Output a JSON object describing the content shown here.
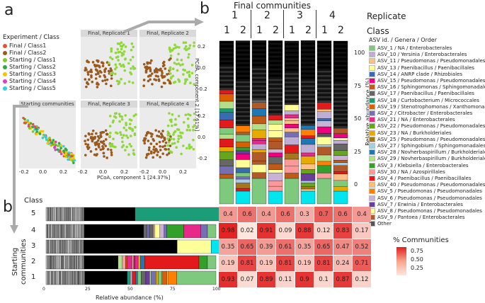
{
  "panel_labels": {
    "a": "a",
    "b_top": "b",
    "b_bottom": "b"
  },
  "legend_a": {
    "title": "Experiment / Class",
    "items": [
      {
        "label": "Final / Class1",
        "color": "#e8502f"
      },
      {
        "label": "Final / Class2",
        "color": "#9a5a1e"
      },
      {
        "label": "Starting / Class1",
        "color": "#7ecb1c"
      },
      {
        "label": "Starting / Class2",
        "color": "#2fa844"
      },
      {
        "label": "Starting / Class3",
        "color": "#f5c400"
      },
      {
        "label": "Starting / Class4",
        "color": "#e23bc9"
      },
      {
        "label": "Starting / Class5",
        "color": "#2fd1d9"
      }
    ]
  },
  "pcoa": {
    "facets": [
      "Final, Replicate 1",
      "Final, Replicate 2",
      "Starting communities",
      "Final, Replicate 3",
      "Final, Replicate 4"
    ],
    "xlabel": "PCoA, component 1 [24.37%]",
    "ylabel": "PCoA, component 2 [17.61%]",
    "xticks": [
      "-0.2",
      "0.0",
      "0.2"
    ],
    "yticks": [
      "0.2",
      "0.0",
      "-0.2"
    ]
  },
  "final": {
    "title": "Final communities",
    "replicate_label": "Replicate",
    "class_label": "Class",
    "replicates": [
      "1",
      "2",
      "3",
      "4"
    ],
    "classes": [
      "1",
      "2",
      "1",
      "2",
      "1",
      "2",
      "1",
      "2"
    ],
    "yaxis_label": "Relative abundance (%)",
    "yticks": [
      "100",
      "75",
      "50",
      "25",
      "0"
    ]
  },
  "asv_legend": {
    "title": "ASV id. / Genera / Order",
    "items": [
      {
        "label": "ASV_1 / NA / Enterobacterales",
        "color": "#7fc97f"
      },
      {
        "label": "ASV_10 / Yersinia / Enterobacterales",
        "color": "#beaed4"
      },
      {
        "label": "ASV_11 / Pseudomonas / Pseudomonadales",
        "color": "#fdc086"
      },
      {
        "label": "ASV_13 / Paenibacillus / Paenibacillales",
        "color": "#ffff99"
      },
      {
        "label": "ASV_14 / ANRP clade / Rhizobiales",
        "color": "#386cb0"
      },
      {
        "label": "ASV_15 / Pseudomonas / Pseudomonadales",
        "color": "#f0027f"
      },
      {
        "label": "ASV_16 / Sphingomonas / Sphingomonadales",
        "color": "#bf5b17"
      },
      {
        "label": "ASV_17 / Paenibacillus / Paenibacillales",
        "color": "#666666"
      },
      {
        "label": "ASV_18 / Curtobacterium / Micrococcales",
        "color": "#1b9e77"
      },
      {
        "label": "ASV_19 / Stenotrophomonas / Xanthomonadales",
        "color": "#d95f02"
      },
      {
        "label": "ASV_2 / Citrobacter / Enterobacterales",
        "color": "#7570b3"
      },
      {
        "label": "ASV_21 / NA / Enterobacterales",
        "color": "#e7298a"
      },
      {
        "label": "ASV_22 / Pseudomonas / Pseudomonadales",
        "color": "#66a61e"
      },
      {
        "label": "ASV_23 / NA / Burkholderiales",
        "color": "#e6ab02"
      },
      {
        "label": "ASV_25 / Pseudomonas / Pseudomonadales",
        "color": "#a6761d"
      },
      {
        "label": "ASV_27 / Sphingobium / Sphingomonadales",
        "color": "#a6cee3"
      },
      {
        "label": "ASV_28 / Novherbaspirillum / Burkholderiales",
        "color": "#1f78b4"
      },
      {
        "label": "ASV_29 / Novherbaspirillum / Burkholderiales",
        "color": "#b2df8a"
      },
      {
        "label": "ASV_3 / Klebsiella / Enterobacterales",
        "color": "#33a02c"
      },
      {
        "label": "ASV_30 / NA / Azospirillales",
        "color": "#fb9a99"
      },
      {
        "label": "ASV_4 / Paenibacillus / Paenibacillales",
        "color": "#e31a1c"
      },
      {
        "label": "ASV_40 / Pseudomonas / Pseudomonadales",
        "color": "#fdbf6f"
      },
      {
        "label": "ASV_5 / Pseudomonas / Pseudomonadales",
        "color": "#ff7f00"
      },
      {
        "label": "ASV_6 / Pseudomonas / Pseudomonadales",
        "color": "#cab2d6"
      },
      {
        "label": "ASV_7 / Erwinia / Enterobacterales",
        "color": "#6a3d9a"
      },
      {
        "label": "ASV_8 / Pseudomonas / Pseudomonadales",
        "color": "#ffff99"
      },
      {
        "label": "ASV_9 / Pantoea / Enterobacterales",
        "color": "#b15928"
      },
      {
        "label": "Other",
        "color": "#555555"
      }
    ]
  },
  "starting": {
    "class_label": "Class",
    "y_label_line1": "Starting",
    "y_label_line2": "communities",
    "classes": [
      "5",
      "4",
      "3",
      "2",
      "1"
    ],
    "xlabel": "Relative abundance (%)",
    "xticks": [
      "0",
      "25",
      "50",
      "75",
      "100"
    ]
  },
  "heatmap": {
    "legend_title": "% Communities",
    "legend_ticks": [
      "0.75",
      "0.50",
      "0.25"
    ],
    "rows": [
      [
        "0.4",
        "0.6",
        "0.4",
        "0.6",
        "0.3",
        "0.7",
        "0.6",
        "0.4"
      ],
      [
        "0.98",
        "0.02",
        "0.91",
        "0.09",
        "0.88",
        "0.12",
        "0.83",
        "0.17"
      ],
      [
        "0.35",
        "0.65",
        "0.39",
        "0.61",
        "0.35",
        "0.65",
        "0.47",
        "0.52"
      ],
      [
        "0.19",
        "0.81",
        "0.19",
        "0.81",
        "0.19",
        "0.81",
        "0.24",
        "0.71"
      ],
      [
        "0.93",
        "0.07",
        "0.89",
        "0.11",
        "0.9",
        "0.1",
        "0.87",
        "0.12"
      ]
    ]
  }
}
